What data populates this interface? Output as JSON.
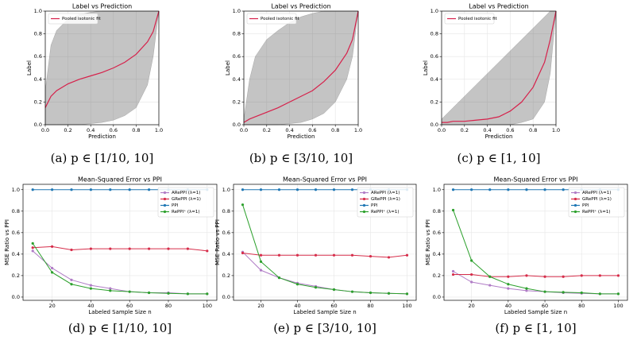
{
  "chart_data": [
    {
      "type": "line",
      "title": "Label vs Prediction",
      "xlabel": "Prediction",
      "ylabel": "Label",
      "caption": "(a) p ∈ [1/10, 10]",
      "x": [
        0,
        0.05,
        0.1,
        0.2,
        0.3,
        0.4,
        0.5,
        0.6,
        0.7,
        0.8,
        0.9,
        0.95,
        1
      ],
      "series": [
        {
          "name": "Pooled isotonic fit",
          "color": "#d6204a",
          "values": [
            0.15,
            0.25,
            0.3,
            0.36,
            0.4,
            0.43,
            0.46,
            0.5,
            0.55,
            0.62,
            0.73,
            0.82,
            1
          ]
        }
      ],
      "spread": {
        "color": "#555555",
        "lower": [
          0,
          0,
          0,
          0,
          0,
          0.01,
          0.02,
          0.04,
          0.08,
          0.15,
          0.35,
          0.6,
          1
        ],
        "upper": [
          0.3,
          0.7,
          0.83,
          0.93,
          0.97,
          0.99,
          1,
          1,
          1,
          1,
          1,
          1,
          1
        ]
      },
      "xlim": [
        0,
        1
      ],
      "ylim": [
        0,
        1
      ],
      "xticks": [
        {
          "value": 0,
          "label": "0.0"
        },
        0.2,
        0.4,
        0.6,
        0.8,
        {
          "value": 1,
          "label": "1.0"
        }
      ],
      "yticks": [
        {
          "value": 0,
          "label": "0.0"
        },
        0.2,
        0.4,
        0.6,
        0.8,
        {
          "value": 1,
          "label": "1.0"
        }
      ],
      "grid": true,
      "legend": "upper left"
    },
    {
      "type": "line",
      "title": "Label vs Prediction",
      "xlabel": "Prediction",
      "ylabel": "Label",
      "caption": "(b) p ∈ [3/10, 10]",
      "x": [
        0,
        0.05,
        0.1,
        0.2,
        0.3,
        0.4,
        0.5,
        0.6,
        0.7,
        0.8,
        0.9,
        0.95,
        1
      ],
      "series": [
        {
          "name": "Pooled isotonic fit",
          "color": "#d6204a",
          "values": [
            0.02,
            0.05,
            0.07,
            0.11,
            0.15,
            0.2,
            0.25,
            0.3,
            0.38,
            0.48,
            0.63,
            0.75,
            1
          ]
        }
      ],
      "spread": {
        "color": "#555555",
        "lower": [
          0,
          0,
          0,
          0,
          0,
          0.01,
          0.02,
          0.05,
          0.1,
          0.2,
          0.4,
          0.6,
          1
        ],
        "upper": [
          0.05,
          0.4,
          0.6,
          0.75,
          0.83,
          0.9,
          0.95,
          0.98,
          1,
          1,
          1,
          1,
          1
        ]
      },
      "xlim": [
        0,
        1
      ],
      "ylim": [
        0,
        1
      ],
      "xticks": [
        {
          "value": 0,
          "label": "0.0"
        },
        0.2,
        0.4,
        0.6,
        0.8,
        {
          "value": 1,
          "label": "1.0"
        }
      ],
      "yticks": [
        {
          "value": 0,
          "label": "0.0"
        },
        0.2,
        0.4,
        0.6,
        0.8,
        {
          "value": 1,
          "label": "1.0"
        }
      ],
      "grid": true,
      "legend": "upper left"
    },
    {
      "type": "line",
      "title": "Label vs Prediction",
      "xlabel": "Prediction",
      "ylabel": "Label",
      "caption": "(c) p ∈ [1, 10]",
      "x": [
        0,
        0.05,
        0.1,
        0.2,
        0.3,
        0.4,
        0.5,
        0.6,
        0.7,
        0.8,
        0.9,
        0.95,
        1
      ],
      "series": [
        {
          "name": "Pooled isotonic fit",
          "color": "#d6204a",
          "values": [
            0.02,
            0.02,
            0.03,
            0.03,
            0.04,
            0.05,
            0.07,
            0.12,
            0.2,
            0.33,
            0.55,
            0.75,
            1
          ]
        }
      ],
      "spread": {
        "color": "#555555",
        "lower": [
          0,
          0,
          0,
          0,
          0,
          0,
          0,
          0,
          0.02,
          0.05,
          0.2,
          0.45,
          1
        ],
        "upper": [
          0.05,
          0.1,
          0.15,
          0.25,
          0.35,
          0.45,
          0.55,
          0.65,
          0.75,
          0.85,
          0.95,
          1,
          1
        ]
      },
      "xlim": [
        0,
        1
      ],
      "ylim": [
        0,
        1
      ],
      "xticks": [
        {
          "value": 0,
          "label": "0.0"
        },
        0.2,
        0.4,
        0.6,
        0.8,
        {
          "value": 1,
          "label": "1.0"
        }
      ],
      "yticks": [
        {
          "value": 0,
          "label": "0.0"
        },
        0.2,
        0.4,
        0.6,
        0.8,
        {
          "value": 1,
          "label": "1.0"
        }
      ],
      "grid": true,
      "legend": "upper left"
    },
    {
      "type": "line",
      "title": "Mean-Squared Error vs PPI",
      "xlabel": "Labeled Sample Size n",
      "ylabel": "MSE Ratio vs PPI",
      "caption": "(d) p ∈ [1/10, 10]",
      "x": [
        10,
        20,
        30,
        40,
        50,
        60,
        70,
        80,
        90,
        100
      ],
      "markers": true,
      "series": [
        {
          "name": "ARePPI (λ=1)",
          "color": "#b07cc6",
          "values": [
            0.43,
            0.27,
            0.16,
            0.11,
            0.08,
            0.05,
            0.04,
            0.04,
            0.03,
            0.03
          ]
        },
        {
          "name": "GRePPI (λ=1)",
          "color": "#d62d4a",
          "values": [
            0.46,
            0.47,
            0.44,
            0.45,
            0.45,
            0.45,
            0.45,
            0.45,
            0.45,
            0.43
          ]
        },
        {
          "name": "PPI",
          "color": "#1f77b4",
          "values": [
            1,
            1,
            1,
            1,
            1,
            1,
            1,
            1,
            1,
            1
          ]
        },
        {
          "name": "RePPI⁺ (λ=1)",
          "color": "#2ca02c",
          "values": [
            0.5,
            0.23,
            0.12,
            0.08,
            0.06,
            0.05,
            0.04,
            0.035,
            0.03,
            0.03
          ]
        }
      ],
      "xlim": [
        5,
        105
      ],
      "ylim": [
        -0.03,
        1.05
      ],
      "xticks": [
        20,
        40,
        60,
        80,
        100
      ],
      "yticks": [
        {
          "value": 0,
          "label": "0.0"
        },
        0.2,
        0.4,
        0.6,
        0.8,
        {
          "value": 1,
          "label": "1.0"
        }
      ],
      "grid": true,
      "legend": "upper right"
    },
    {
      "type": "line",
      "title": "Mean-Squared Error vs PPI",
      "xlabel": "Labeled Sample Size n",
      "ylabel": "MSE Ratio vs PPI",
      "caption": "(e) p ∈ [3/10, 10]",
      "x": [
        10,
        20,
        30,
        40,
        50,
        60,
        70,
        80,
        90,
        100
      ],
      "markers": true,
      "series": [
        {
          "name": "ARePPI (λ=1)",
          "color": "#b07cc6",
          "values": [
            0.42,
            0.25,
            0.18,
            0.13,
            0.1,
            0.07,
            0.05,
            0.04,
            0.035,
            0.03
          ]
        },
        {
          "name": "GRePPI (λ=1)",
          "color": "#d62d4a",
          "values": [
            0.41,
            0.39,
            0.39,
            0.39,
            0.39,
            0.39,
            0.39,
            0.38,
            0.37,
            0.39
          ]
        },
        {
          "name": "PPI",
          "color": "#1f77b4",
          "values": [
            1,
            1,
            1,
            1,
            1,
            1,
            1,
            1,
            1,
            1
          ]
        },
        {
          "name": "RePPI⁺ (λ=1)",
          "color": "#2ca02c",
          "values": [
            0.86,
            0.33,
            0.18,
            0.12,
            0.09,
            0.07,
            0.05,
            0.04,
            0.035,
            0.03
          ]
        }
      ],
      "xlim": [
        5,
        105
      ],
      "ylim": [
        -0.03,
        1.05
      ],
      "xticks": [
        20,
        40,
        60,
        80,
        100
      ],
      "yticks": [
        {
          "value": 0,
          "label": "0.0"
        },
        0.2,
        0.4,
        0.6,
        0.8,
        {
          "value": 1,
          "label": "1.0"
        }
      ],
      "grid": true,
      "legend": "upper right"
    },
    {
      "type": "line",
      "title": "Mean-Squared Error vs PPI",
      "xlabel": "Labeled Sample Size n",
      "ylabel": "MSE Ratio vs PPI",
      "caption": "(f) p ∈ [1, 10]",
      "x": [
        10,
        20,
        30,
        40,
        50,
        60,
        70,
        80,
        90,
        100
      ],
      "markers": true,
      "series": [
        {
          "name": "ARePPI (λ=1)",
          "color": "#b07cc6",
          "values": [
            0.24,
            0.14,
            0.11,
            0.08,
            0.06,
            0.05,
            0.04,
            0.035,
            0.03,
            0.03
          ]
        },
        {
          "name": "GRePPI (λ=1)",
          "color": "#d62d4a",
          "values": [
            0.21,
            0.21,
            0.19,
            0.19,
            0.2,
            0.19,
            0.19,
            0.2,
            0.2,
            0.2
          ]
        },
        {
          "name": "PPI",
          "color": "#1f77b4",
          "values": [
            1,
            1,
            1,
            1,
            1,
            1,
            1,
            1,
            1,
            1
          ]
        },
        {
          "name": "RePPI⁺ (λ=1)",
          "color": "#2ca02c",
          "values": [
            0.81,
            0.34,
            0.19,
            0.12,
            0.08,
            0.05,
            0.045,
            0.04,
            0.03,
            0.03
          ]
        }
      ],
      "xlim": [
        5,
        105
      ],
      "ylim": [
        -0.03,
        1.05
      ],
      "xticks": [
        20,
        40,
        60,
        80,
        100
      ],
      "yticks": [
        {
          "value": 0,
          "label": "0.0"
        },
        0.2,
        0.4,
        0.6,
        0.8,
        {
          "value": 1,
          "label": "1.0"
        }
      ],
      "grid": true,
      "legend": "upper right"
    }
  ]
}
